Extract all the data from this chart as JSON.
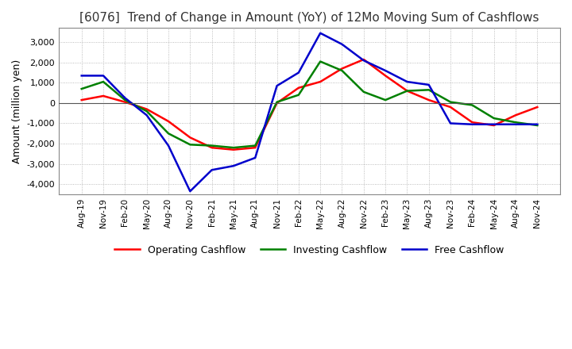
{
  "title": "[6076]  Trend of Change in Amount (YoY) of 12Mo Moving Sum of Cashflows",
  "ylabel": "Amount (million yen)",
  "ylim": [
    -4500,
    3700
  ],
  "yticks": [
    -4000,
    -3000,
    -2000,
    -1000,
    0,
    1000,
    2000,
    3000
  ],
  "x_labels": [
    "Aug-19",
    "Nov-19",
    "Feb-20",
    "May-20",
    "Aug-20",
    "Nov-20",
    "Feb-21",
    "May-21",
    "Aug-21",
    "Nov-21",
    "Feb-22",
    "May-22",
    "Aug-22",
    "Nov-22",
    "Feb-23",
    "May-23",
    "Aug-23",
    "Nov-23",
    "Feb-24",
    "May-24",
    "Aug-24",
    "Nov-24"
  ],
  "operating": [
    150,
    350,
    50,
    -300,
    -900,
    -1700,
    -2200,
    -2300,
    -2200,
    0,
    750,
    1050,
    1700,
    2150,
    1350,
    600,
    150,
    -200,
    -950,
    -1100,
    -600,
    -200
  ],
  "investing": [
    700,
    1050,
    150,
    -400,
    -1500,
    -2050,
    -2100,
    -2200,
    -2100,
    50,
    400,
    2050,
    1600,
    550,
    150,
    600,
    650,
    50,
    -100,
    -750,
    -950,
    -1100
  ],
  "free": [
    1350,
    1350,
    250,
    -600,
    -2100,
    -4350,
    -3300,
    -3100,
    -2700,
    850,
    1500,
    3450,
    2900,
    2100,
    1600,
    1050,
    900,
    -1000,
    -1050,
    -1050,
    -1050,
    -1050
  ],
  "op_color": "#ff0000",
  "inv_color": "#008000",
  "free_color": "#0000cc",
  "bg_color": "#ffffff",
  "grid_color": "#aaaaaa",
  "title_fontsize": 11,
  "legend_labels": [
    "Operating Cashflow",
    "Investing Cashflow",
    "Free Cashflow"
  ]
}
